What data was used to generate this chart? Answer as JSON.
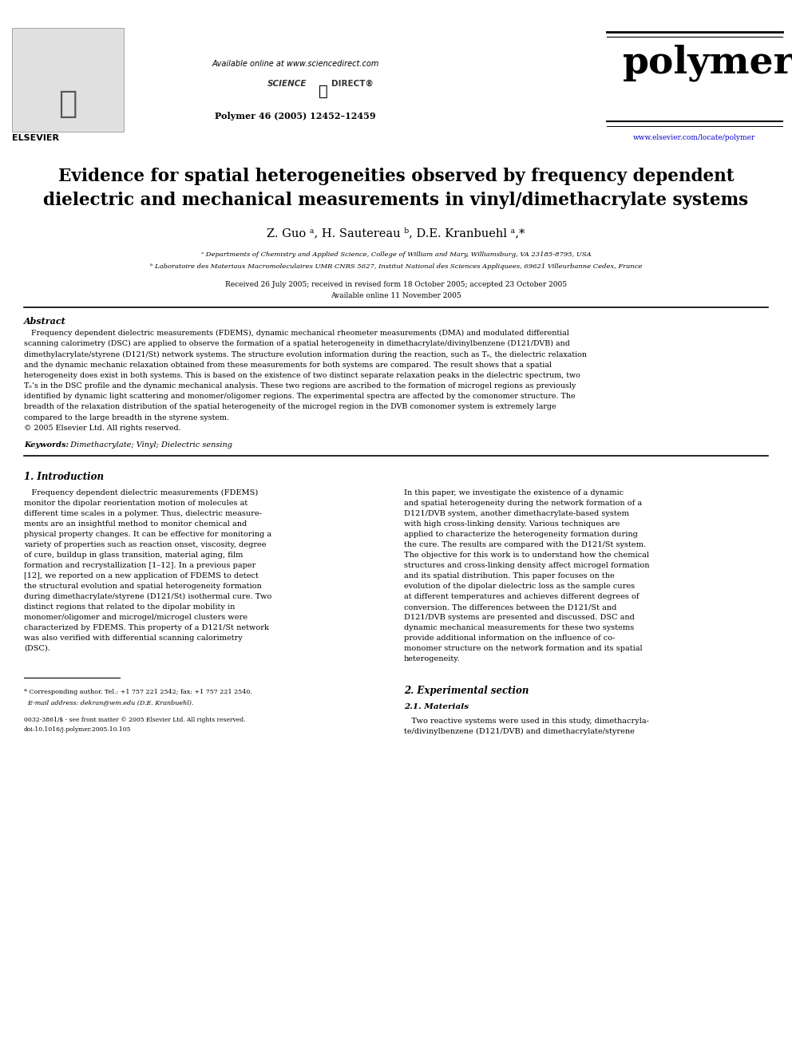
{
  "bg_color": "#ffffff",
  "header_available_online": "Available online at www.sciencedirect.com",
  "journal_name": "polymer",
  "journal_ref": "Polymer 46 (2005) 12452–12459",
  "journal_url": "www.elsevier.com/locate/polymer",
  "title_line1": "Evidence for spatial heterogeneities observed by frequency dependent",
  "title_line2": "dielectric and mechanical measurements in vinyl/dimethacrylate systems",
  "authors": "Z. Guo ᵃ, H. Sautereau ᵇ, D.E. Kranbuehl ᵃ,*",
  "affil_a": "ᵃ Departments of Chemistry and Applied Science, College of William and Mary, Williamsburg, VA 23185-8795, USA",
  "affil_b": "ᵇ Laboratoire des Materiaux Macromoleculaires UMR CNRS 5627, Institut National des Sciences Appliquees, 69621 Villeurbanne Cedex, France",
  "dates": "Received 26 July 2005; received in revised form 18 October 2005; accepted 23 October 2005",
  "available_online": "Available online 11 November 2005",
  "abstract_title": "Abstract",
  "keywords_label": "Keywords:",
  "keywords": " Dimethacrylate; Vinyl; Dielectric sensing",
  "section1_title": "1. Introduction",
  "section2_title": "2. Experimental section",
  "section21_title": "2.1. Materials",
  "footnote_corresponding": "* Corresponding author. Tel.: +1 757 221 2542; fax: +1 757 221 2540.",
  "footnote_email": "  E-mail address: dekran@wm.edu (D.E. Kranbuehl).",
  "footnote_issn": "0032-3861/$ - see front matter © 2005 Elsevier Ltd. All rights reserved.",
  "footnote_doi": "doi:10.1016/j.polymer.2005.10.105",
  "abstract_lines": [
    "   Frequency dependent dielectric measurements (FDEMS), dynamic mechanical rheometer measurements (DMA) and modulated differential",
    "scanning calorimetry (DSC) are applied to observe the formation of a spatial heterogeneity in dimethacrylate/divinylbenzene (D121/DVB) and",
    "dimethylacrylate/styrene (D121/St) network systems. The structure evolution information during the reaction, such as Tₑ, the dielectric relaxation",
    "and the dynamic mechanic relaxation obtained from these measurements for both systems are compared. The result shows that a spatial",
    "heterogeneity does exist in both systems. This is based on the existence of two distinct separate relaxation peaks in the dielectric spectrum, two",
    "Tₑ’s in the DSC profile and the dynamic mechanical analysis. These two regions are ascribed to the formation of microgel regions as previously",
    "identified by dynamic light scattering and monomer/oligomer regions. The experimental spectra are affected by the comonomer structure. The",
    "breadth of the relaxation distribution of the spatial heterogeneity of the microgel region in the DVB comonomer system is extremely large",
    "compared to the large breadth in the styrene system.",
    "© 2005 Elsevier Ltd. All rights reserved."
  ],
  "left_col_lines": [
    "   Frequency dependent dielectric measurements (FDEMS)",
    "monitor the dipolar reorientation motion of molecules at",
    "different time scales in a polymer. Thus, dielectric measure-",
    "ments are an insightful method to monitor chemical and",
    "physical property changes. It can be effective for monitoring a",
    "variety of properties such as reaction onset, viscosity, degree",
    "of cure, buildup in glass transition, material aging, film",
    "formation and recrystallization [1–12]. In a previous paper",
    "[12], we reported on a new application of FDEMS to detect",
    "the structural evolution and spatial heterogeneity formation",
    "during dimethacrylate/styrene (D121/St) isothermal cure. Two",
    "distinct regions that related to the dipolar mobility in",
    "monomer/oligomer and microgel/microgel clusters were",
    "characterized by FDEMS. This property of a D121/St network",
    "was also verified with differential scanning calorimetry",
    "(DSC)."
  ],
  "right_col_lines": [
    "In this paper, we investigate the existence of a dynamic",
    "and spatial heterogeneity during the network formation of a",
    "D121/DVB system, another dimethacrylate-based system",
    "with high cross-linking density. Various techniques are",
    "applied to characterize the heterogeneity formation during",
    "the cure. The results are compared with the D121/St system.",
    "The objective for this work is to understand how the chemical",
    "structures and cross-linking density affect microgel formation",
    "and its spatial distribution. This paper focuses on the",
    "evolution of the dipolar dielectric loss as the sample cures",
    "at different temperatures and achieves different degrees of",
    "conversion. The differences between the D121/St and",
    "D121/DVB systems are presented and discussed. DSC and",
    "dynamic mechanical measurements for these two systems",
    "provide additional information on the influence of co-",
    "monomer structure on the network formation and its spatial",
    "heterogeneity."
  ],
  "sec21_lines": [
    "   Two reactive systems were used in this study, dimethacryla-",
    "te/divinylbenzene (D121/DVB) and dimethacrylate/styrene"
  ]
}
